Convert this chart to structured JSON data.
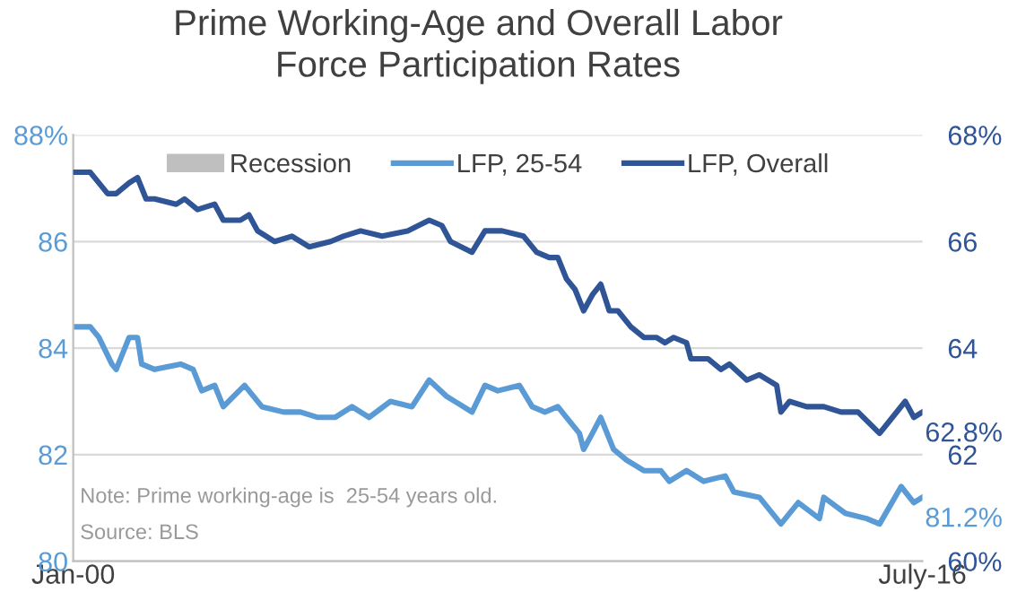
{
  "chart_data": {
    "type": "line",
    "title": "Prime Working-Age and Overall Labor\nForce Participation Rates",
    "xlim": [
      "2000-01",
      "2016-07"
    ],
    "xticks": [
      {
        "value": "2000-01",
        "label": "Jan-00"
      },
      {
        "value": "2016-07",
        "label": "July-16"
      }
    ],
    "ylim": [
      80,
      88
    ],
    "yticks": [
      80,
      82,
      84,
      86,
      {
        "value": 88,
        "label": "88%"
      }
    ],
    "y2lim": [
      60,
      68
    ],
    "y2ticks": [
      {
        "value": 60,
        "label": "60%"
      },
      62,
      64,
      66,
      {
        "value": 68,
        "label": "68%"
      }
    ],
    "grid": "y",
    "legend": "top",
    "annotations": [
      "Note: Prime working-age is  25-54 years old.",
      "Source: BLS"
    ],
    "series": [
      {
        "name": "Recession",
        "type": "bar",
        "color": "#bfbfbf"
      },
      {
        "name": "LFP, 25-54",
        "color": "#5b9bd5",
        "x": [
          "2000-01",
          "2000-05",
          "2000-07",
          "2000-10",
          "2000-11",
          "2001-02",
          "2001-04",
          "2001-05",
          "2001-08",
          "2002-02",
          "2002-05",
          "2002-07",
          "2002-10",
          "2002-12",
          "2003-05",
          "2003-09",
          "2004-02",
          "2004-06",
          "2004-10",
          "2005-02",
          "2005-06",
          "2005-10",
          "2006-03",
          "2006-08",
          "2006-12",
          "2007-04",
          "2007-10",
          "2008-01",
          "2008-04",
          "2008-09",
          "2008-12",
          "2009-03",
          "2009-06",
          "2009-08",
          "2009-11",
          "2009-12",
          "2010-02",
          "2010-04",
          "2010-07",
          "2010-10",
          "2011-02",
          "2011-06",
          "2011-08",
          "2011-12",
          "2012-04",
          "2012-09",
          "2012-11",
          "2013-05",
          "2013-10",
          "2014-02",
          "2014-07",
          "2014-08",
          "2015-01",
          "2015-06",
          "2015-09",
          "2016-02",
          "2016-05",
          "2016-07"
        ],
        "values": [
          84.4,
          84.4,
          84.2,
          83.7,
          83.6,
          84.2,
          84.2,
          83.7,
          83.6,
          83.7,
          83.6,
          83.2,
          83.3,
          82.9,
          83.3,
          82.9,
          82.8,
          82.8,
          82.7,
          82.7,
          82.9,
          82.7,
          83.0,
          82.9,
          83.4,
          83.1,
          82.8,
          83.3,
          83.2,
          83.3,
          82.9,
          82.8,
          82.9,
          82.7,
          82.4,
          82.1,
          82.4,
          82.7,
          82.1,
          81.9,
          81.7,
          81.7,
          81.5,
          81.7,
          81.5,
          81.6,
          81.3,
          81.2,
          80.7,
          81.1,
          80.8,
          81.2,
          80.9,
          80.8,
          80.7,
          81.4,
          81.1,
          81.2
        ],
        "value_labels": [
          null,
          null,
          null,
          null,
          null,
          null,
          null,
          null,
          null,
          null,
          null,
          null,
          null,
          null,
          null,
          null,
          null,
          null,
          null,
          null,
          null,
          null,
          null,
          null,
          null,
          null,
          null,
          null,
          null,
          null,
          null,
          null,
          null,
          null,
          null,
          null,
          null,
          null,
          null,
          null,
          null,
          null,
          null,
          null,
          null,
          null,
          null,
          null,
          null,
          null,
          null,
          null,
          null,
          null,
          null,
          null,
          null,
          "81.2%"
        ]
      },
      {
        "name": "LFP, Overall",
        "color": "#2f5597",
        "axis": "y2",
        "x": [
          "2000-01",
          "2000-05",
          "2000-07",
          "2000-09",
          "2000-11",
          "2001-02",
          "2001-04",
          "2001-06",
          "2001-08",
          "2002-01",
          "2002-03",
          "2002-06",
          "2002-10",
          "2002-12",
          "2003-04",
          "2003-06",
          "2003-08",
          "2003-12",
          "2004-04",
          "2004-08",
          "2005-01",
          "2005-04",
          "2005-08",
          "2006-01",
          "2006-07",
          "2006-12",
          "2007-03",
          "2007-05",
          "2007-10",
          "2008-01",
          "2008-05",
          "2008-10",
          "2009-01",
          "2009-04",
          "2009-06",
          "2009-08",
          "2009-10",
          "2009-12",
          "2010-02",
          "2010-04",
          "2010-06",
          "2010-08",
          "2010-11",
          "2011-02",
          "2011-05",
          "2011-07",
          "2011-09",
          "2011-12",
          "2012-01",
          "2012-05",
          "2012-08",
          "2012-10",
          "2013-02",
          "2013-05",
          "2013-09",
          "2013-10",
          "2013-12",
          "2014-04",
          "2014-08",
          "2014-12",
          "2015-04",
          "2015-09",
          "2015-11",
          "2016-03",
          "2016-05",
          "2016-07"
        ],
        "values": [
          67.3,
          67.3,
          67.1,
          66.9,
          66.9,
          67.1,
          67.2,
          66.8,
          66.8,
          66.7,
          66.8,
          66.6,
          66.7,
          66.4,
          66.4,
          66.5,
          66.2,
          66.0,
          66.1,
          65.9,
          66.0,
          66.1,
          66.2,
          66.1,
          66.2,
          66.4,
          66.3,
          66.0,
          65.8,
          66.2,
          66.2,
          66.1,
          65.8,
          65.7,
          65.7,
          65.3,
          65.1,
          64.7,
          65.0,
          65.2,
          64.7,
          64.7,
          64.4,
          64.2,
          64.2,
          64.1,
          64.2,
          64.1,
          63.8,
          63.8,
          63.6,
          63.7,
          63.4,
          63.5,
          63.3,
          62.8,
          63.0,
          62.9,
          62.9,
          62.8,
          62.8,
          62.4,
          62.6,
          63.0,
          62.7,
          62.8
        ],
        "value_labels": [
          null,
          null,
          null,
          null,
          null,
          null,
          null,
          null,
          null,
          null,
          null,
          null,
          null,
          null,
          null,
          null,
          null,
          null,
          null,
          null,
          null,
          null,
          null,
          null,
          null,
          null,
          null,
          null,
          null,
          null,
          null,
          null,
          null,
          null,
          null,
          null,
          null,
          null,
          null,
          null,
          null,
          null,
          null,
          null,
          null,
          null,
          null,
          null,
          null,
          null,
          null,
          null,
          null,
          null,
          null,
          null,
          null,
          null,
          null,
          null,
          null,
          null,
          null,
          null,
          null,
          "62.8%"
        ]
      }
    ]
  }
}
